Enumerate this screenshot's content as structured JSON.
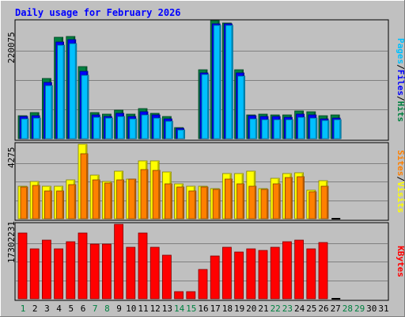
{
  "chart_data": [
    {
      "type": "bar",
      "title": "Daily usage for February 2026",
      "ytick": "220075",
      "right_label": [
        {
          "text": "Pages",
          "color": "#00c0ff"
        },
        {
          "text": "/",
          "color": "#000000"
        },
        {
          "text": "Files",
          "color": "#0000ff"
        },
        {
          "text": "/",
          "color": "#000000"
        },
        {
          "text": "Hits",
          "color": "#008040"
        }
      ],
      "ylim": [
        0,
        220075
      ],
      "categories": [
        "1",
        "2",
        "3",
        "4",
        "5",
        "6",
        "7",
        "8",
        "9",
        "10",
        "11",
        "12",
        "13",
        "14",
        "15",
        "16",
        "17",
        "18",
        "19",
        "20",
        "21",
        "22",
        "23",
        "24",
        "25",
        "26",
        "27",
        "28",
        "29",
        "30",
        "31"
      ],
      "series": [
        {
          "name": "Hits",
          "color": "#008040",
          "values": [
            43000,
            49000,
            113000,
            191000,
            192000,
            136000,
            49000,
            46000,
            53000,
            46000,
            57000,
            47000,
            41000,
            21000,
            0,
            129000,
            221000,
            217000,
            130000,
            45000,
            46000,
            45000,
            45000,
            52000,
            50000,
            43000,
            44000,
            0,
            0,
            0,
            0
          ]
        },
        {
          "name": "Files",
          "color": "#0000ff",
          "values": [
            41000,
            43000,
            106000,
            182000,
            186000,
            127000,
            44000,
            42000,
            48000,
            42000,
            51000,
            44000,
            37000,
            20000,
            0,
            124000,
            216000,
            216000,
            124000,
            43000,
            42000,
            42000,
            40000,
            46000,
            45000,
            37000,
            39000,
            0,
            0,
            0,
            0
          ]
        },
        {
          "name": "Pages",
          "color": "#00c0ff",
          "values": [
            37000,
            39000,
            100000,
            176000,
            178000,
            119000,
            40000,
            38000,
            42000,
            37000,
            45000,
            38000,
            33000,
            16000,
            0,
            120000,
            212000,
            212000,
            117000,
            37000,
            36000,
            36000,
            36000,
            40000,
            39000,
            34000,
            35000,
            0,
            0,
            0,
            0
          ]
        }
      ]
    },
    {
      "type": "bar",
      "ytick": "4275",
      "right_label": [
        {
          "text": "Sites",
          "color": "#ff8000"
        },
        {
          "text": "/",
          "color": "#000000"
        },
        {
          "text": "Visits",
          "color": "#ffff00"
        }
      ],
      "ylim": [
        0,
        4275
      ],
      "categories": [
        "1",
        "2",
        "3",
        "4",
        "5",
        "6",
        "7",
        "8",
        "9",
        "10",
        "11",
        "12",
        "13",
        "14",
        "15",
        "16",
        "17",
        "18",
        "19",
        "20",
        "21",
        "22",
        "23",
        "24",
        "25",
        "26",
        "27",
        "28",
        "29",
        "30",
        "31"
      ],
      "series": [
        {
          "name": "Visits",
          "color": "#ffff00",
          "values": [
            1850,
            2130,
            1880,
            1850,
            2240,
            4260,
            2500,
            2150,
            2710,
            2280,
            3320,
            3320,
            2690,
            2000,
            1850,
            1880,
            1720,
            2580,
            2580,
            2710,
            1750,
            2340,
            2580,
            2640,
            1640,
            2200,
            0,
            0,
            0,
            0,
            0
          ]
        },
        {
          "name": "Sites",
          "color": "#ff8000",
          "values": [
            1830,
            1920,
            1610,
            1580,
            1940,
            3720,
            2240,
            2050,
            2250,
            2280,
            2820,
            2770,
            2000,
            1820,
            1570,
            1840,
            1700,
            2280,
            2020,
            1850,
            1670,
            2000,
            2350,
            2400,
            1560,
            1880,
            0,
            0,
            0,
            0,
            0
          ]
        }
      ]
    },
    {
      "type": "bar",
      "ytick": "17302231",
      "right_label": [
        {
          "text": "KBytes",
          "color": "#ff0000"
        }
      ],
      "ylim": [
        0,
        17302231
      ],
      "categories": [
        "1",
        "2",
        "3",
        "4",
        "5",
        "6",
        "7",
        "8",
        "9",
        "10",
        "11",
        "12",
        "13",
        "14",
        "15",
        "16",
        "17",
        "18",
        "19",
        "20",
        "21",
        "22",
        "23",
        "24",
        "25",
        "26",
        "27",
        "28",
        "29",
        "30",
        "31"
      ],
      "series": [
        {
          "name": "KBytes",
          "color": "#ff0000",
          "values": [
            15250000,
            11550000,
            13620000,
            11550000,
            13200000,
            15250000,
            12620000,
            12620000,
            17300000,
            12000000,
            15250000,
            12000000,
            10100000,
            1630000,
            1630000,
            6730000,
            9900000,
            12000000,
            10930000,
            11550000,
            11300000,
            12000000,
            13200000,
            13620000,
            11550000,
            13000000,
            0,
            0,
            0,
            0,
            0
          ]
        }
      ]
    }
  ],
  "x_day_colors": [
    "#008040",
    "#000000",
    "#000000",
    "#000000",
    "#000000",
    "#000000",
    "#008040",
    "#008040",
    "#000000",
    "#000000",
    "#000000",
    "#000000",
    "#000000",
    "#008040",
    "#008040",
    "#000000",
    "#000000",
    "#000000",
    "#000000",
    "#000000",
    "#000000",
    "#008040",
    "#008040",
    "#000000",
    "#000000",
    "#000000",
    "#000000",
    "#008040",
    "#008040",
    "#000000",
    "#000000"
  ]
}
